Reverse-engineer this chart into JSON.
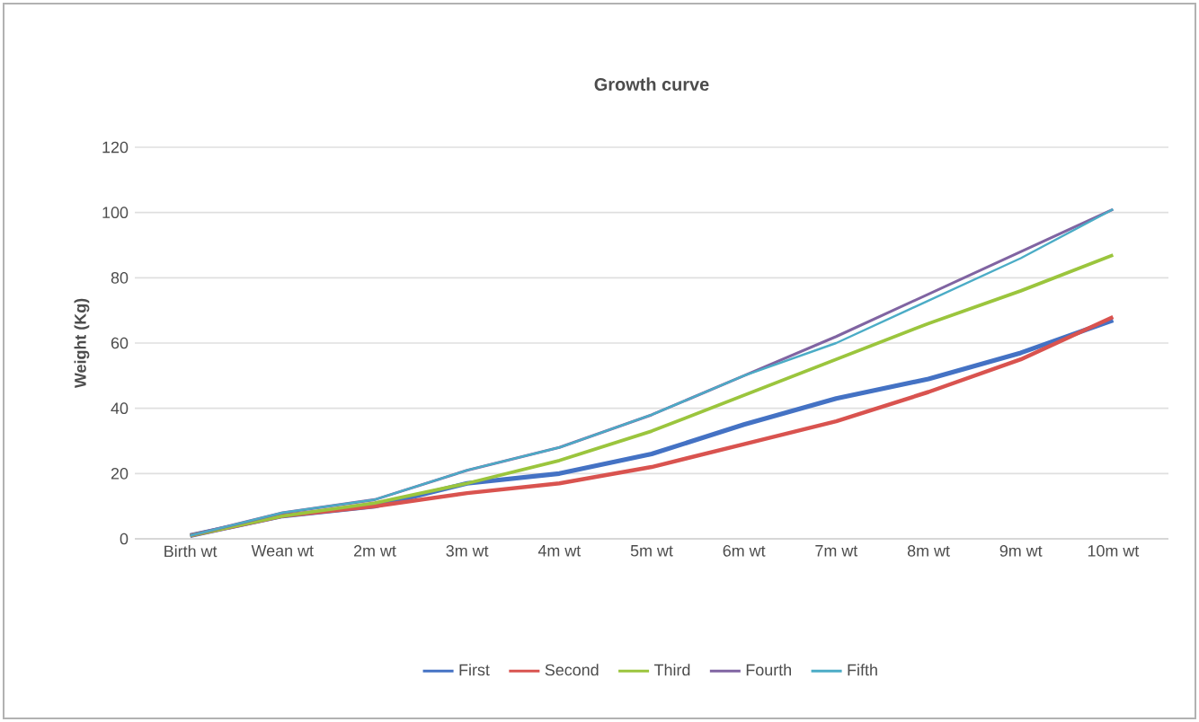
{
  "chart_data": {
    "type": "line",
    "title": "Growth curve",
    "ylabel": "Weight (Kg)",
    "categories": [
      "Birth wt",
      "Wean wt",
      "2m wt",
      "3m wt",
      "4m wt",
      "5m wt",
      "6m wt",
      "7m wt",
      "8m wt",
      "9m wt",
      "10m wt"
    ],
    "series": [
      {
        "name": "First",
        "color": "#4472c4",
        "values": [
          1,
          7,
          10,
          17,
          20,
          26,
          35,
          43,
          49,
          57,
          67
        ]
      },
      {
        "name": "Second",
        "color": "#d9534f",
        "values": [
          1,
          7,
          10,
          14,
          17,
          22,
          29,
          36,
          45,
          55,
          68
        ]
      },
      {
        "name": "Third",
        "color": "#9bc53d",
        "values": [
          1,
          7,
          11,
          17,
          24,
          33,
          44,
          55,
          66,
          76,
          87
        ]
      },
      {
        "name": "Fourth",
        "color": "#8064a2",
        "values": [
          1,
          8,
          12,
          21,
          28,
          38,
          50,
          62,
          75,
          88,
          101
        ]
      },
      {
        "name": "Fifth",
        "color": "#4bacc6",
        "values": [
          1,
          8,
          12,
          21,
          28,
          38,
          50,
          60,
          73,
          86,
          101
        ]
      }
    ],
    "ylim": [
      0,
      120
    ],
    "yticks": [
      0,
      20,
      40,
      60,
      80,
      100,
      120
    ],
    "grid": "y",
    "legend": "bottom",
    "marker": "none",
    "line_style": "solid"
  }
}
